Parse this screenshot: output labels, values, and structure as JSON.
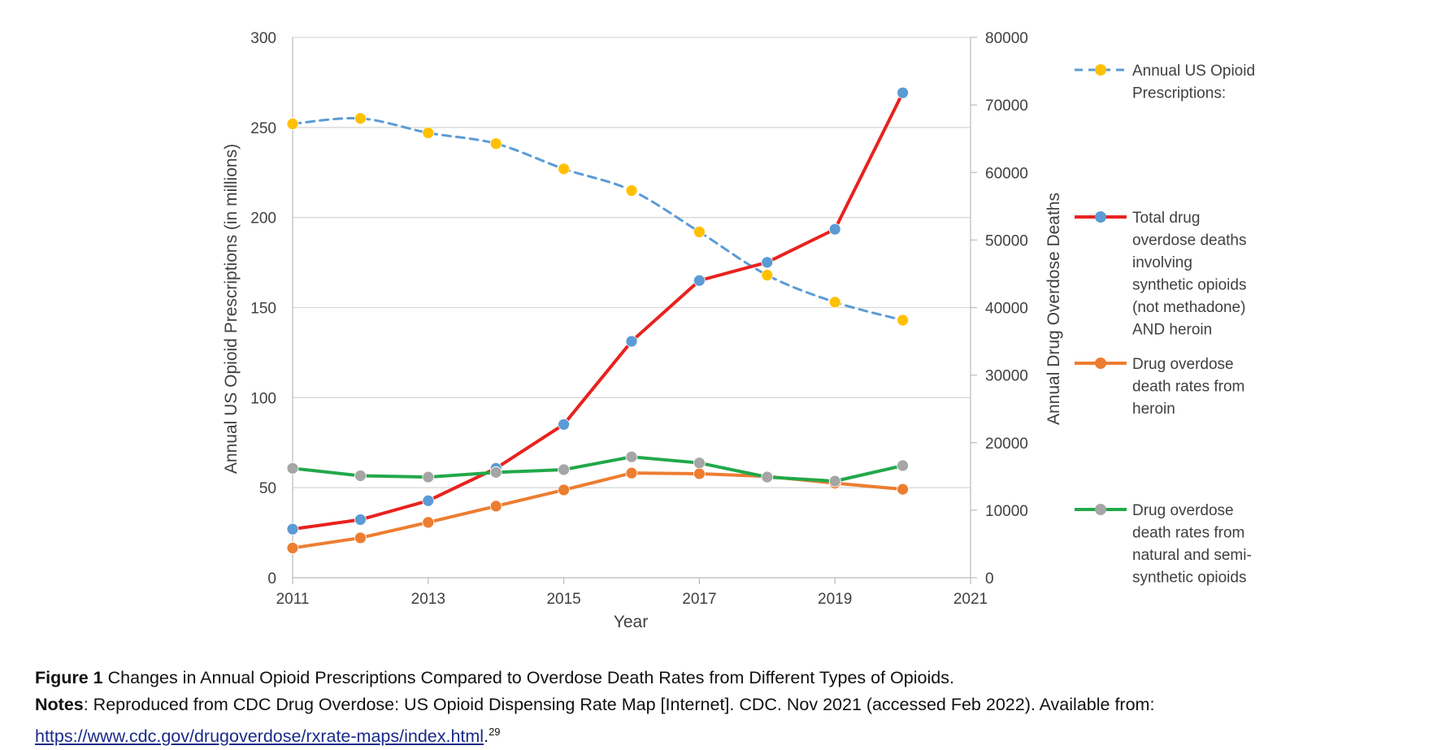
{
  "chart_data": {
    "type": "line",
    "xlabel": "Year",
    "ylabel_left": "Annual US Opioid Prescriptions (in millions)",
    "ylabel_right": "Annual Drug Overdose Deaths",
    "x_ticks": [
      "2011",
      "2013",
      "2015",
      "2017",
      "2019",
      "2021"
    ],
    "y_left_ticks": [
      "0",
      "50",
      "100",
      "150",
      "200",
      "250",
      "300"
    ],
    "y_right_ticks": [
      "0",
      "10000",
      "20000",
      "30000",
      "40000",
      "50000",
      "60000",
      "70000",
      "80000"
    ],
    "xlim": [
      2011,
      2021
    ],
    "ylim_left": [
      0,
      300
    ],
    "ylim_right": [
      0,
      80000
    ],
    "grid": true,
    "legend_position": "right",
    "x": [
      2011,
      2012,
      2013,
      2014,
      2015,
      2016,
      2017,
      2018,
      2019,
      2020
    ],
    "series": [
      {
        "name": "Annual US Opioid Prescriptions:",
        "axis": "left",
        "style": "dashed",
        "line_color": "#5b9bd5",
        "marker_color": "#ffc000",
        "legend_lines": [
          "Annual US Opioid",
          "Prescriptions:"
        ],
        "values": [
          252,
          255,
          247,
          241,
          227,
          215,
          192,
          168,
          153,
          143
        ]
      },
      {
        "name": "Total drug overdose deaths involving synthetic opioids (not methadone) AND heroin",
        "axis": "right",
        "style": "solid",
        "line_color": "#e8221f",
        "marker_color": "#5b9bd5",
        "legend_lines": [
          "Total drug",
          "overdose deaths",
          "involving",
          "synthetic opioids",
          "(not methadone)",
          "AND heroin"
        ],
        "values": [
          7200,
          8600,
          11400,
          16200,
          22700,
          35000,
          44000,
          46700,
          51600,
          71800
        ]
      },
      {
        "name": "Drug overdose death rates from heroin",
        "axis": "right",
        "style": "solid",
        "line_color": "#ed7d31",
        "marker_color": "#ed7d31",
        "legend_lines": [
          "Drug overdose",
          "death rates from",
          "heroin"
        ],
        "values": [
          4400,
          5900,
          8200,
          10600,
          13000,
          15500,
          15400,
          15000,
          14000,
          13100
        ]
      },
      {
        "name": "Drug overdose death rates from natural and semi-synthetic opioids",
        "axis": "right",
        "style": "solid",
        "line_color": "#22a84a",
        "marker_color": "#a5a5a5",
        "legend_lines": [
          "Drug overdose",
          "death rates from",
          "natural and semi-",
          "synthetic opioids"
        ],
        "values": [
          16200,
          15100,
          14900,
          15600,
          16000,
          17900,
          17000,
          14900,
          14300,
          16600
        ]
      }
    ]
  },
  "caption": {
    "figure_label": "Figure 1",
    "figure_title": "Changes in Annual Opioid Prescriptions Compared to Overdose Death Rates from Different Types of Opioids.",
    "notes_label": "Notes",
    "notes_text": ": Reproduced from CDC Drug Overdose: US Opioid Dispensing Rate Map [Internet]. CDC. Nov 2021 (accessed Feb 2022). Available from: ",
    "link_text": "https://www.cdc.gov/drugoverdose/rxrate-maps/index.html",
    "after_link": ".",
    "reference": "29"
  }
}
